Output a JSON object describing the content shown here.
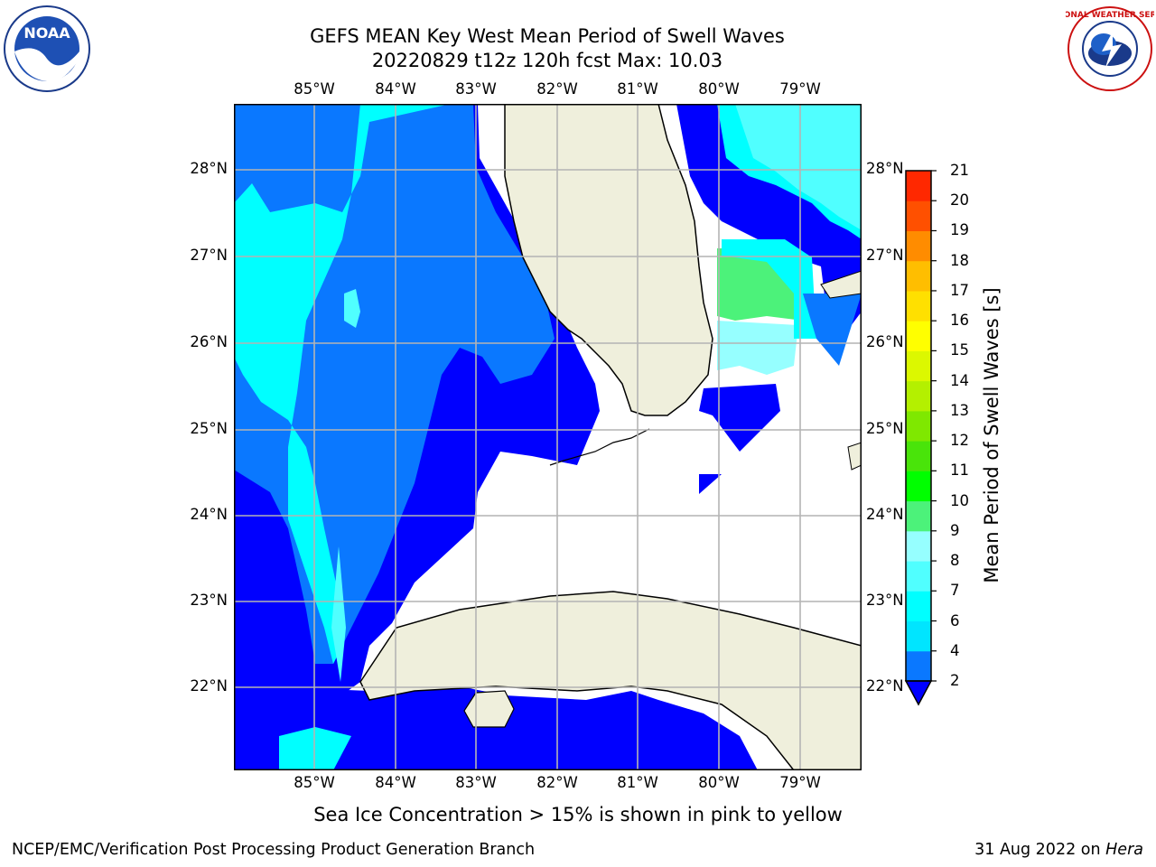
{
  "title_line1": "GEFS MEAN Key West Mean Period of Swell Waves",
  "title_line2": "20220829 t12z 120h fcst   Max: 10.03",
  "lon_labels": [
    "85°W",
    "84°W",
    "83°W",
    "82°W",
    "81°W",
    "80°W",
    "79°W"
  ],
  "lat_labels": [
    "28°N",
    "27°N",
    "26°N",
    "25°N",
    "24°N",
    "23°N",
    "22°N"
  ],
  "colorbar": {
    "title": "Mean Period of Swell Waves [s]",
    "ticks": [
      "2",
      "4",
      "6",
      "7",
      "8",
      "9",
      "10",
      "11",
      "12",
      "13",
      "14",
      "15",
      "16",
      "17",
      "18",
      "19",
      "20",
      "21"
    ],
    "colors": [
      "#0000ff",
      "#0a78ff",
      "#00e5ff",
      "#00ffff",
      "#50ffff",
      "#96ffff",
      "#4cf27a",
      "#00ff00",
      "#49e40a",
      "#7fe800",
      "#b4f000",
      "#dcf800",
      "#ffff00",
      "#ffe000",
      "#ffbe00",
      "#ff8c00",
      "#ff5000",
      "#ff2800",
      "#ff0000"
    ]
  },
  "sea_ice_note": "Sea Ice Concentration > 15% is shown in pink to yellow",
  "footer_left": "NCEP/EMC/Verification Post Processing Product Generation Branch",
  "footer_date": "31 Aug 2022 on ",
  "footer_machine": "Hera",
  "logos": {
    "left": "noaa-logo",
    "right": "nws-logo"
  },
  "logo_text": {
    "noaa": "NOAA",
    "nws": "NATIONAL WEATHER SERVICE"
  },
  "max_value": 10.03
}
